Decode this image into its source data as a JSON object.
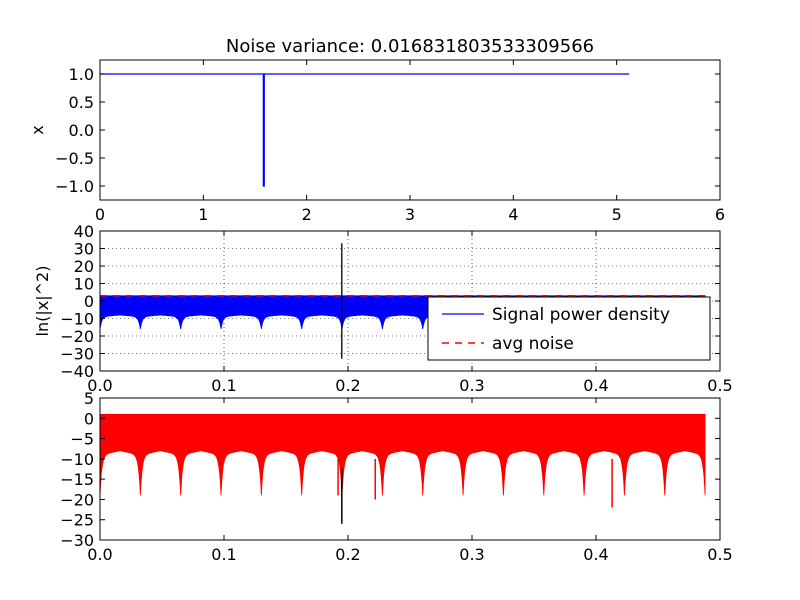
{
  "figure_title": "Noise variance: 0.016831803533309566",
  "chart_data": [
    {
      "type": "line",
      "title": "Noise variance: 0.016831803533309566",
      "xlabel": "",
      "ylabel": "x",
      "xlim": [
        0,
        6
      ],
      "ylim": [
        -1.25,
        1.25
      ],
      "xticks": [
        "0",
        "1",
        "2",
        "3",
        "4",
        "5",
        "6"
      ],
      "yticks": [
        "1.0",
        "0.5",
        "0.0",
        "−0.5",
        "−1.0"
      ],
      "grid": false,
      "series": [
        {
          "color": "#0000ff",
          "x": [
            0,
            1.58,
            1.58,
            1.59,
            1.59,
            5.12
          ],
          "y": [
            1,
            1,
            -1,
            -1,
            1,
            1
          ]
        }
      ]
    },
    {
      "type": "line",
      "title": "",
      "xlabel": "",
      "ylabel": "ln(|x|^2)",
      "xlim": [
        0,
        0.5
      ],
      "ylim": [
        -40,
        40
      ],
      "xticks": [
        "0.0",
        "0.1",
        "0.2",
        "0.3",
        "0.4",
        "0.5"
      ],
      "yticks": [
        "40",
        "30",
        "20",
        "10",
        "0",
        "−10",
        "−20",
        "−30",
        "−40"
      ],
      "grid": true,
      "legend_position": "lower-right",
      "series": [
        {
          "name": "Signal power density",
          "color": "#0000ff",
          "style": "solid",
          "band_top": 3,
          "envelope_top": -8,
          "cusp_depth": -15,
          "x_end": 0.488
        },
        {
          "name": "avg noise",
          "color": "#ff0000",
          "style": "dashed",
          "y": 3
        }
      ],
      "spike": {
        "x": 0.195,
        "y": [
          -33,
          33
        ],
        "color": "#000000"
      }
    },
    {
      "type": "line",
      "title": "",
      "xlabel": "",
      "ylabel": "",
      "xlim": [
        0,
        0.5
      ],
      "ylim": [
        -30,
        5
      ],
      "xticks": [
        "0.0",
        "0.1",
        "0.2",
        "0.3",
        "0.4",
        "0.5"
      ],
      "yticks": [
        "5",
        "0",
        "−5",
        "−10",
        "−15",
        "−20",
        "−25",
        "−30"
      ],
      "grid": false,
      "series": [
        {
          "color": "#ff0000",
          "band_top": 1,
          "envelope_top": -8,
          "cusp_depth": -18,
          "x_end": 0.488
        }
      ],
      "dips": [
        {
          "x": 0.192,
          "y": -19
        },
        {
          "x": 0.222,
          "y": -20
        },
        {
          "x": 0.413,
          "y": -22
        }
      ],
      "spike": {
        "x": 0.195,
        "y": [
          -26,
          -12
        ],
        "color": "#000000"
      }
    }
  ]
}
